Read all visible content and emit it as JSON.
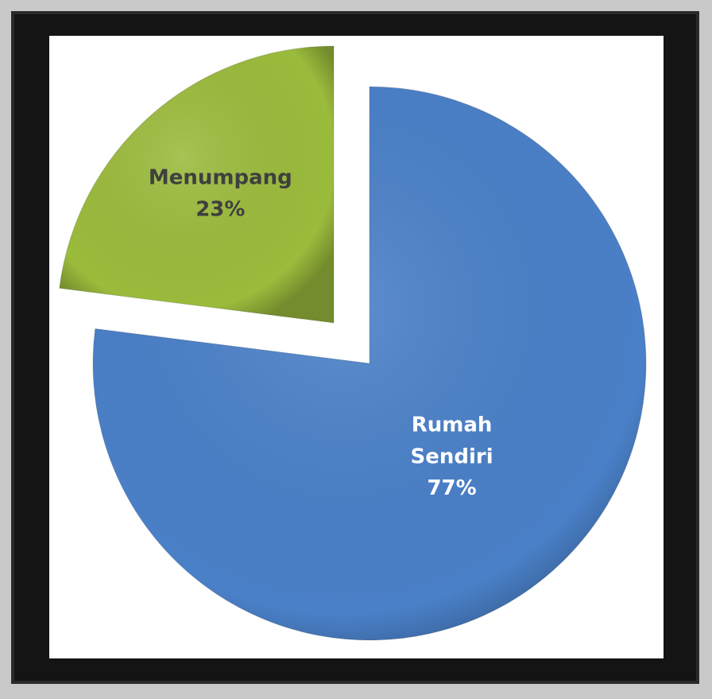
{
  "chart_data": {
    "type": "pie",
    "categories": [
      "Rumah Sendiri",
      "Menumpang"
    ],
    "values": [
      77,
      23
    ],
    "value_labels": [
      "77%",
      "23%"
    ],
    "colors": [
      "#4a80c8",
      "#9bbb3c"
    ],
    "label_colors": [
      "#ffffff",
      "#3f3f3f"
    ]
  }
}
